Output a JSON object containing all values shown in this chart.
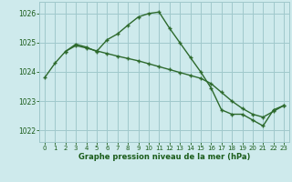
{
  "line1_x": [
    0,
    1,
    2,
    3,
    4,
    5,
    6,
    7,
    8,
    9,
    10,
    11,
    12,
    13,
    14,
    15,
    16,
    17,
    18,
    19,
    20,
    21,
    22,
    23
  ],
  "line1_y": [
    1023.8,
    1024.3,
    1024.7,
    1024.95,
    1024.85,
    1024.7,
    1025.1,
    1025.3,
    1025.6,
    1025.88,
    1026.0,
    1026.05,
    1025.5,
    1025.0,
    1024.5,
    1024.0,
    1023.45,
    1022.7,
    1022.55,
    1022.55,
    1022.35,
    1022.15,
    1022.7,
    1022.85
  ],
  "line2_x": [
    2,
    3,
    4,
    5,
    6,
    7,
    8,
    9,
    10,
    11,
    12,
    13,
    14,
    15,
    16,
    17,
    18,
    19,
    20,
    21,
    22,
    23
  ],
  "line2_y": [
    1024.7,
    1024.9,
    1024.82,
    1024.72,
    1024.63,
    1024.54,
    1024.46,
    1024.38,
    1024.28,
    1024.18,
    1024.08,
    1023.98,
    1023.88,
    1023.78,
    1023.6,
    1023.3,
    1023.0,
    1022.75,
    1022.55,
    1022.45,
    1022.65,
    1022.85
  ],
  "line_color": "#2d6a2d",
  "bg_color": "#ceeaec",
  "grid_color": "#a0c8cc",
  "text_color": "#1a5c1a",
  "xlabel": "Graphe pression niveau de la mer (hPa)",
  "ylim": [
    1021.6,
    1026.4
  ],
  "xlim": [
    -0.5,
    23.5
  ],
  "yticks": [
    1022,
    1023,
    1024,
    1025,
    1026
  ],
  "xticks": [
    0,
    1,
    2,
    3,
    4,
    5,
    6,
    7,
    8,
    9,
    10,
    11,
    12,
    13,
    14,
    15,
    16,
    17,
    18,
    19,
    20,
    21,
    22,
    23
  ]
}
